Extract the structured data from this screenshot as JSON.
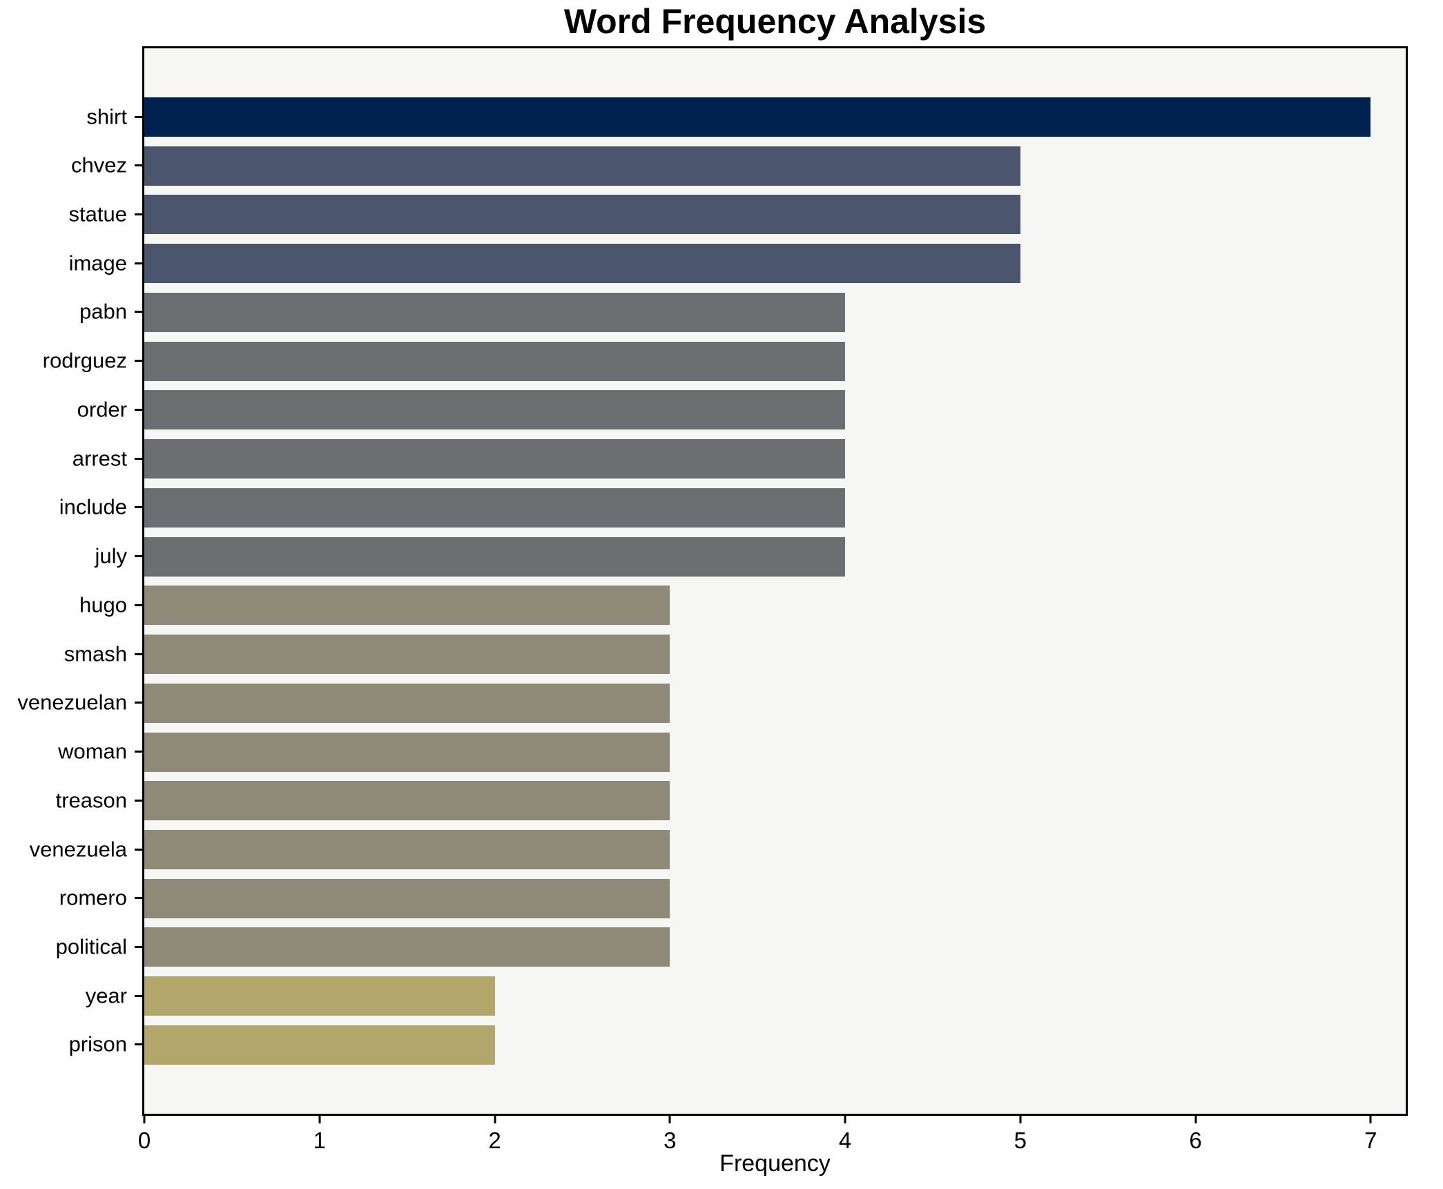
{
  "title": "Word Frequency Analysis",
  "chart_data": {
    "type": "bar",
    "orientation": "horizontal",
    "title": "Word Frequency Analysis",
    "xlabel": "Frequency",
    "ylabel": "",
    "categories": [
      "shirt",
      "chvez",
      "statue",
      "image",
      "pabn",
      "rodrguez",
      "order",
      "arrest",
      "include",
      "july",
      "hugo",
      "smash",
      "venezuelan",
      "woman",
      "treason",
      "venezuela",
      "romero",
      "political",
      "year",
      "prison"
    ],
    "values": [
      7,
      5,
      5,
      5,
      4,
      4,
      4,
      4,
      4,
      4,
      3,
      3,
      3,
      3,
      3,
      3,
      3,
      3,
      2,
      2
    ],
    "bar_colors": [
      "#00224E",
      "#4C556E",
      "#4C556E",
      "#4C556E",
      "#6D6E71",
      "#6D6E71",
      "#6D6E71",
      "#6D6E71",
      "#6D6E71",
      "#6D6E71",
      "#8F8978",
      "#8F8978",
      "#8F8978",
      "#8F8978",
      "#8F8978",
      "#8F8978",
      "#8F8978",
      "#8F8978",
      "#B2A66B",
      "#B2A66B"
    ],
    "xlim": [
      0,
      7.2
    ],
    "x_ticks": [
      0,
      1,
      2,
      3,
      4,
      5,
      6,
      7
    ],
    "grid": false,
    "legend": null,
    "plot_background": "#F6F6F4",
    "figure_background": "#FFFFFF",
    "frame_color": "#000000",
    "bar_height_fraction": 0.8
  }
}
